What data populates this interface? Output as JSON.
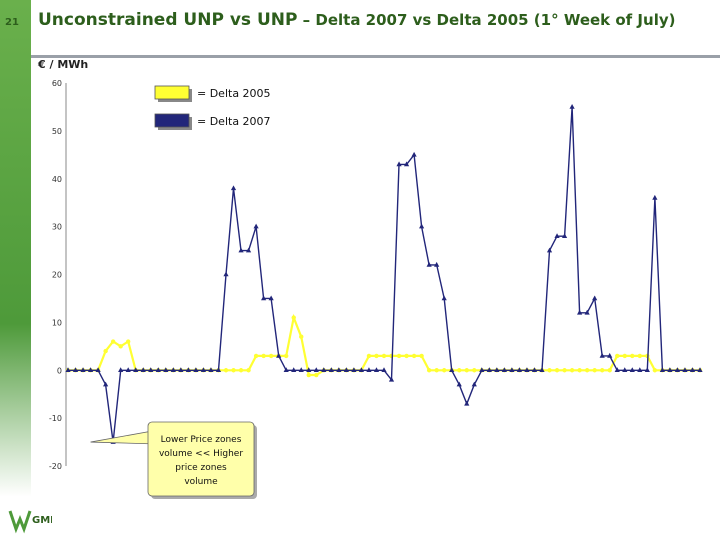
{
  "slide": {
    "number": "21",
    "title_main": "Unconstrained UNP vs UNP",
    "title_rest": " – Delta 2007 vs Delta 2005 (1° Week of July)",
    "unit_label": "€ / MWh",
    "logo_text": "GME"
  },
  "colors": {
    "delta2005": "#ffff33",
    "delta2007": "#22267a",
    "accent": "#4e9a3a"
  },
  "chart_data": {
    "type": "line",
    "title": "Unconstrained UNP vs UNP – Delta 2007 vs Delta 2005 (1° Week of July)",
    "ylabel": "€ / MWh",
    "xlabel": "",
    "ylim": [
      -20,
      60
    ],
    "yticks": [
      "60",
      "50",
      "40",
      "30",
      "20",
      "10",
      "0",
      "-10",
      "-20"
    ],
    "grid": false,
    "legend_position": "top-left",
    "x": [
      0,
      2,
      4,
      6,
      8,
      10,
      12,
      14,
      16,
      18,
      20,
      22,
      24,
      26,
      28,
      30,
      32,
      34,
      36,
      38,
      40,
      42,
      44,
      46,
      48,
      50,
      52,
      54,
      56,
      58,
      60,
      62,
      64,
      66,
      68,
      70,
      72,
      74,
      76,
      78,
      80,
      82,
      84,
      86,
      88,
      90,
      92,
      94,
      96,
      98,
      100,
      102,
      104,
      106,
      108,
      110,
      112,
      114,
      116,
      118,
      120,
      122,
      124,
      126,
      128,
      130,
      132,
      134,
      136,
      138,
      140,
      142,
      144,
      146,
      148,
      150,
      152,
      154,
      156,
      158,
      160,
      162,
      164,
      166,
      168
    ],
    "series": [
      {
        "name": "= Delta 2005",
        "color": "#ffff33",
        "values": [
          0,
          0,
          0,
          0,
          0,
          4,
          6,
          5,
          6,
          0,
          0,
          0,
          0,
          0,
          0,
          0,
          0,
          0,
          0,
          0,
          0,
          0,
          0,
          0,
          0,
          3,
          3,
          3,
          3,
          3,
          11,
          7,
          -1,
          -1,
          0,
          0,
          0,
          0,
          0,
          0,
          3,
          3,
          3,
          3,
          3,
          3,
          3,
          3,
          0,
          0,
          0,
          0,
          0,
          0,
          0,
          0,
          0,
          0,
          0,
          0,
          0,
          0,
          0,
          0,
          0,
          0,
          0,
          0,
          0,
          0,
          0,
          0,
          0,
          3,
          3,
          3,
          3,
          3,
          0,
          0,
          0,
          0,
          0,
          0,
          0
        ]
      },
      {
        "name": "= Delta 2007",
        "color": "#22267a",
        "values": [
          0,
          0,
          0,
          0,
          0,
          -3,
          -15,
          0,
          0,
          0,
          0,
          0,
          0,
          0,
          0,
          0,
          0,
          0,
          0,
          0,
          0,
          20,
          38,
          25,
          25,
          30,
          15,
          15,
          3,
          0,
          0,
          0,
          0,
          0,
          0,
          0,
          0,
          0,
          0,
          0,
          0,
          0,
          0,
          -2,
          43,
          43,
          45,
          30,
          22,
          22,
          15,
          0,
          -3,
          -7,
          -3,
          0,
          0,
          0,
          0,
          0,
          0,
          0,
          0,
          0,
          25,
          28,
          28,
          55,
          12,
          12,
          15,
          3,
          3,
          0,
          0,
          0,
          0,
          0,
          36,
          0,
          0,
          0,
          0,
          0,
          0
        ]
      }
    ],
    "annotations": [
      {
        "text_lines": [
          "Lower Price zones",
          "volume << Higher",
          "price zones",
          "volume"
        ],
        "x": 6,
        "y": -15
      }
    ]
  }
}
